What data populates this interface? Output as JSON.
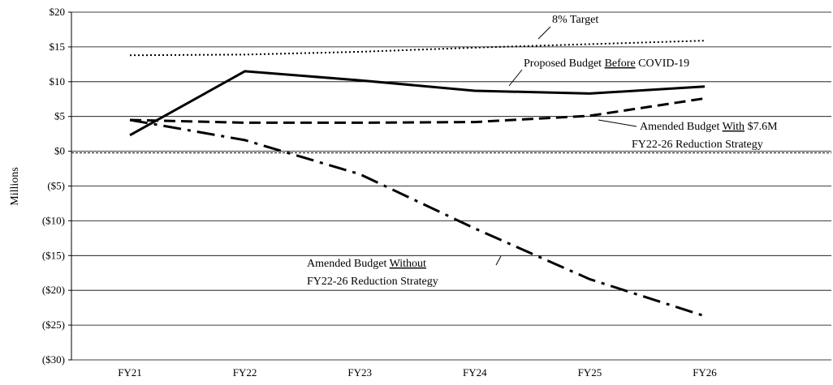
{
  "chart_data": {
    "type": "line",
    "y_label": "Millions",
    "categories": [
      "FY21",
      "FY22",
      "FY23",
      "FY24",
      "FY25",
      "FY26"
    ],
    "series": [
      {
        "name": "8% Target",
        "color": "#000000",
        "style": "dotted",
        "values": [
          13.8,
          13.9,
          14.3,
          14.9,
          15.4,
          15.9
        ]
      },
      {
        "name": "Proposed Budget Before COVID-19",
        "color": "#000000",
        "style": "solid",
        "values": [
          2.3,
          11.5,
          10.2,
          8.7,
          8.3,
          9.3
        ]
      },
      {
        "name": "Amended Budget With $7.6M FY22-26 Reduction Strategy",
        "color": "#000000",
        "style": "dashed",
        "values": [
          4.5,
          4.1,
          4.1,
          4.2,
          5.1,
          7.6
        ]
      },
      {
        "name": "Amended Budget Without FY22-26 Reduction Strategy",
        "color": "#000000",
        "style": "dash-dot",
        "values": [
          4.5,
          1.6,
          -3.3,
          -11.1,
          -18.4,
          -23.7
        ]
      }
    ],
    "annotations": [
      {
        "lines": [
          "8% Target"
        ]
      },
      {
        "lines": [
          "Proposed Budget Before COVID-19"
        ],
        "underline": "Before"
      },
      {
        "lines": [
          "Amended Budget With $7.6M",
          "FY22-26 Reduction Strategy"
        ],
        "underline": "With"
      },
      {
        "lines": [
          "Amended Budget Without",
          "FY22-26 Reduction Strategy"
        ],
        "underline": "Without"
      }
    ],
    "ylim": [
      -30,
      20
    ],
    "yticks": [
      {
        "value": 20,
        "label": "$20"
      },
      {
        "value": 15,
        "label": "$15"
      },
      {
        "value": 10,
        "label": "$10"
      },
      {
        "value": 5,
        "label": "$5"
      },
      {
        "value": 0,
        "label": "$0"
      },
      {
        "value": -5,
        "label": "($5)"
      },
      {
        "value": -10,
        "label": "($10)"
      },
      {
        "value": -15,
        "label": "($15)"
      },
      {
        "value": -20,
        "label": "($20)"
      },
      {
        "value": -25,
        "label": "($25)"
      },
      {
        "value": -30,
        "label": "($30)"
      }
    ],
    "grid": true
  }
}
